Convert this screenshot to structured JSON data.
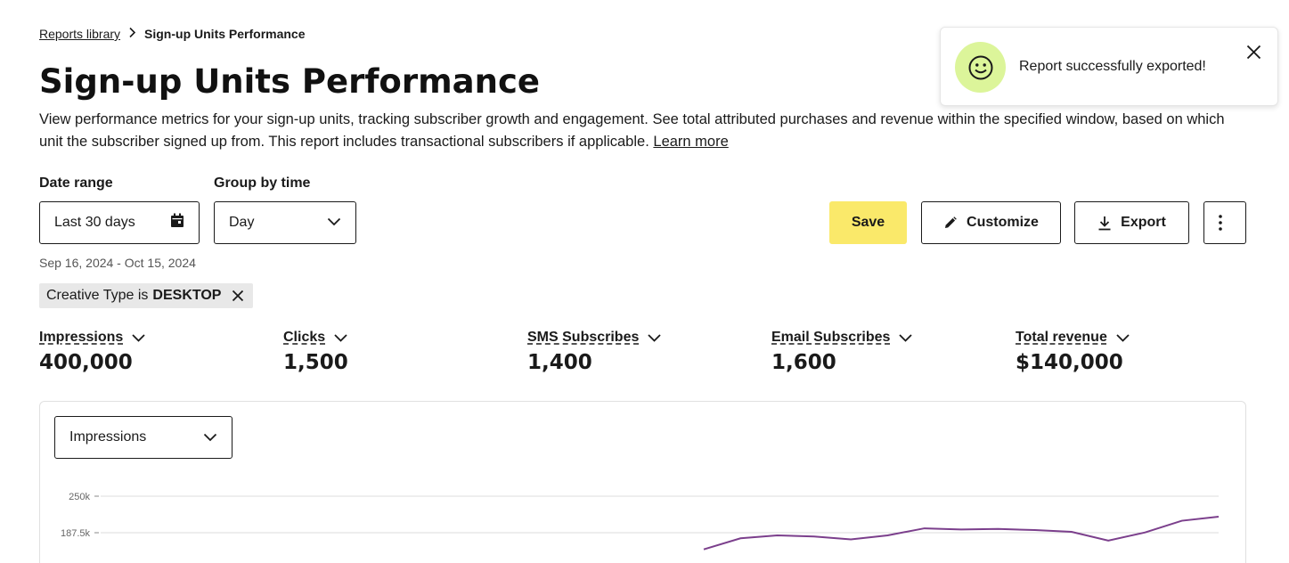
{
  "breadcrumb": {
    "parent": "Reports library",
    "current": "Sign-up Units Performance"
  },
  "page": {
    "title": "Sign-up Units Performance",
    "description": "View performance metrics for your sign-up units, tracking subscriber growth and engagement. See total attributed purchases and revenue within the specified window, based on which unit the subscriber signed up from. This report includes transactional subscribers if applicable.",
    "learn_more": "Learn more"
  },
  "filters": {
    "date_range_label": "Date range",
    "date_range_value": "Last 30 days",
    "group_by_label": "Group by time",
    "group_by_value": "Day",
    "date_span": "Sep 16, 2024 - Oct 15, 2024"
  },
  "actions": {
    "save": "Save",
    "customize": "Customize",
    "export": "Export"
  },
  "filter_chip": {
    "prefix": "Creative Type is",
    "value": "DESKTOP"
  },
  "metrics": [
    {
      "label": "Impressions",
      "value": "400,000"
    },
    {
      "label": "Clicks",
      "value": "1,500"
    },
    {
      "label": "SMS Subscribes",
      "value": "1,400"
    },
    {
      "label": "Email Subscribes",
      "value": "1,600"
    },
    {
      "label": "Total revenue",
      "value": "$140,000"
    }
  ],
  "chart_panel": {
    "metric_select": "Impressions"
  },
  "chart_data": {
    "type": "line",
    "title": "",
    "xlabel": "",
    "ylabel": "",
    "yticks": [
      "250k",
      "187.5k"
    ],
    "ylim_visible": [
      187500,
      250000
    ],
    "series": [
      {
        "color": "#7b3f8c",
        "points": [
          [
            0,
            159000
          ],
          [
            1,
            178000
          ],
          [
            2,
            183000
          ],
          [
            3,
            181000
          ],
          [
            4,
            176000
          ],
          [
            5,
            183000
          ],
          [
            6,
            195000
          ],
          [
            7,
            193000
          ],
          [
            8,
            194000
          ],
          [
            9,
            192000
          ],
          [
            10,
            189000
          ],
          [
            11,
            174000
          ],
          [
            12,
            188000
          ],
          [
            13,
            208000
          ],
          [
            14,
            215000
          ]
        ]
      }
    ]
  },
  "toast": {
    "message": "Report successfully exported!"
  },
  "colors": {
    "save_button": "#fae96a",
    "toast_icon_bg": "#dcf59a",
    "line": "#7b3f8c"
  }
}
